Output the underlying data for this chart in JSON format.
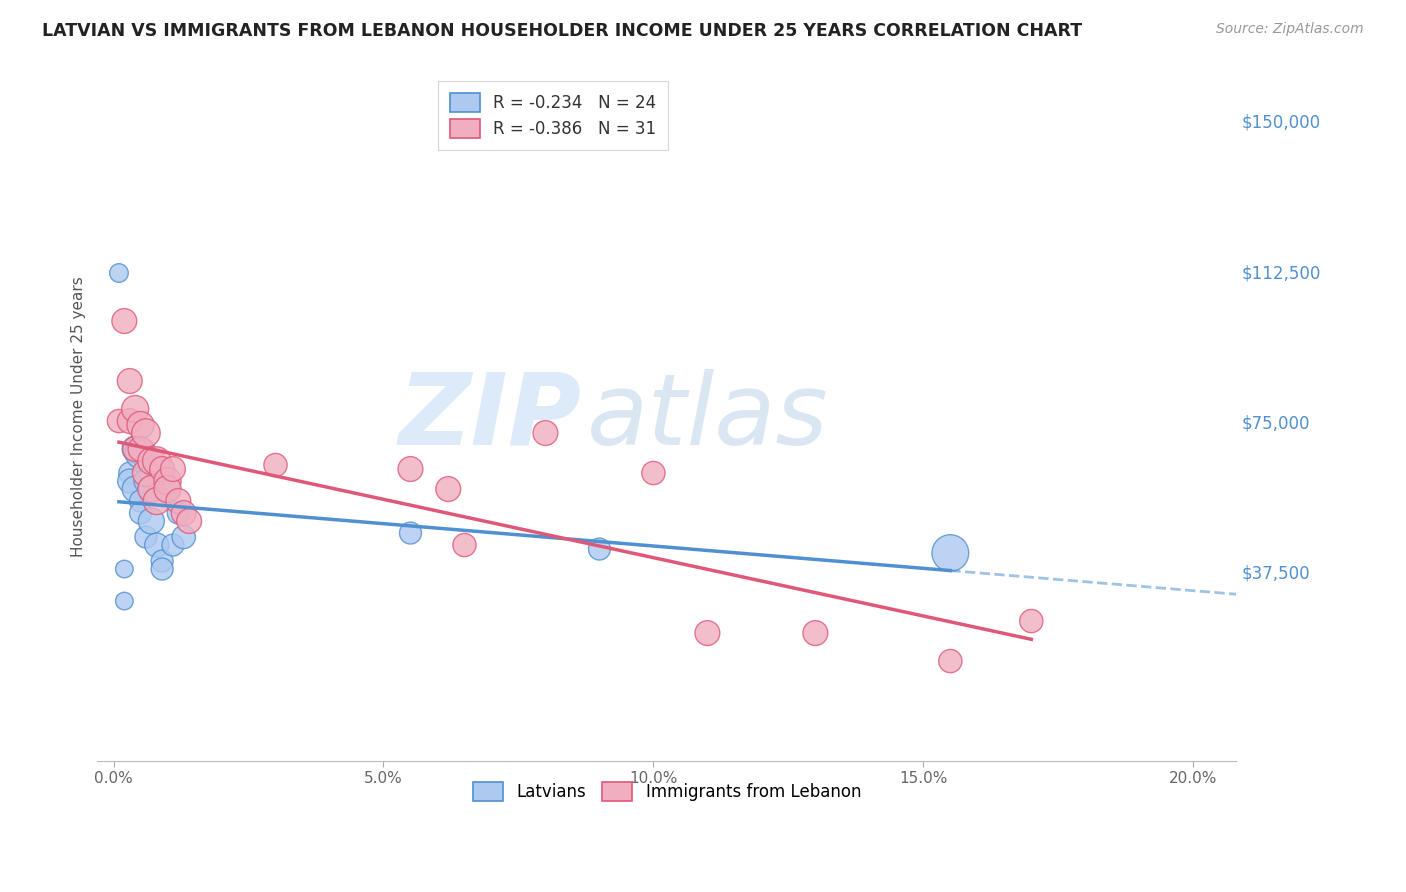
{
  "title": "LATVIAN VS IMMIGRANTS FROM LEBANON HOUSEHOLDER INCOME UNDER 25 YEARS CORRELATION CHART",
  "source": "Source: ZipAtlas.com",
  "ylabel": "Householder Income Under 25 years",
  "xlabel_ticks": [
    "0.0%",
    "5.0%",
    "10.0%",
    "15.0%",
    "20.0%"
  ],
  "xlabel_vals": [
    0.0,
    0.05,
    0.1,
    0.15,
    0.2
  ],
  "ylabel_ticks": [
    "$150,000",
    "$112,500",
    "$75,000",
    "$37,500"
  ],
  "ylabel_vals": [
    150000,
    112500,
    75000,
    37500
  ],
  "xlim": [
    -0.003,
    0.208
  ],
  "ylim": [
    -10000,
    162000
  ],
  "latvian_R": "-0.234",
  "latvian_N": "24",
  "lebanon_R": "-0.386",
  "lebanon_N": "31",
  "latvian_color": "#adc9f0",
  "lebanon_color": "#f0aec0",
  "latvian_line_color": "#5090d0",
  "lebanon_line_color": "#e05878",
  "latvian_x": [
    0.001,
    0.002,
    0.002,
    0.003,
    0.003,
    0.004,
    0.004,
    0.005,
    0.005,
    0.005,
    0.006,
    0.006,
    0.007,
    0.007,
    0.008,
    0.009,
    0.009,
    0.01,
    0.011,
    0.012,
    0.013,
    0.055,
    0.09,
    0.155
  ],
  "latvian_y": [
    112000,
    38000,
    30000,
    62000,
    60000,
    68000,
    58000,
    67000,
    55000,
    52000,
    60000,
    46000,
    58000,
    50000,
    44000,
    40000,
    38000,
    58000,
    44000,
    52000,
    46000,
    47000,
    43000,
    42000
  ],
  "latvian_size": [
    180,
    160,
    160,
    250,
    300,
    350,
    350,
    500,
    250,
    250,
    300,
    250,
    350,
    350,
    300,
    250,
    250,
    300,
    250,
    250,
    280,
    250,
    250,
    700
  ],
  "lebanon_x": [
    0.001,
    0.002,
    0.003,
    0.003,
    0.004,
    0.004,
    0.005,
    0.005,
    0.006,
    0.006,
    0.007,
    0.007,
    0.008,
    0.008,
    0.009,
    0.01,
    0.01,
    0.011,
    0.012,
    0.013,
    0.014,
    0.03,
    0.055,
    0.062,
    0.065,
    0.08,
    0.1,
    0.11,
    0.13,
    0.155,
    0.17
  ],
  "lebanon_y": [
    75000,
    100000,
    85000,
    75000,
    78000,
    68000,
    74000,
    68000,
    72000,
    62000,
    65000,
    58000,
    65000,
    55000,
    63000,
    60000,
    58000,
    63000,
    55000,
    52000,
    50000,
    64000,
    63000,
    58000,
    44000,
    72000,
    62000,
    22000,
    22000,
    15000,
    25000
  ],
  "lebanon_size": [
    280,
    320,
    320,
    320,
    380,
    320,
    380,
    320,
    420,
    380,
    380,
    380,
    420,
    380,
    320,
    380,
    380,
    320,
    320,
    320,
    320,
    280,
    320,
    320,
    280,
    320,
    280,
    320,
    320,
    280,
    280
  ],
  "watermark_zip": "ZIP",
  "watermark_atlas": "atlas",
  "background_color": "#ffffff",
  "grid_color": "#d0d0d0"
}
